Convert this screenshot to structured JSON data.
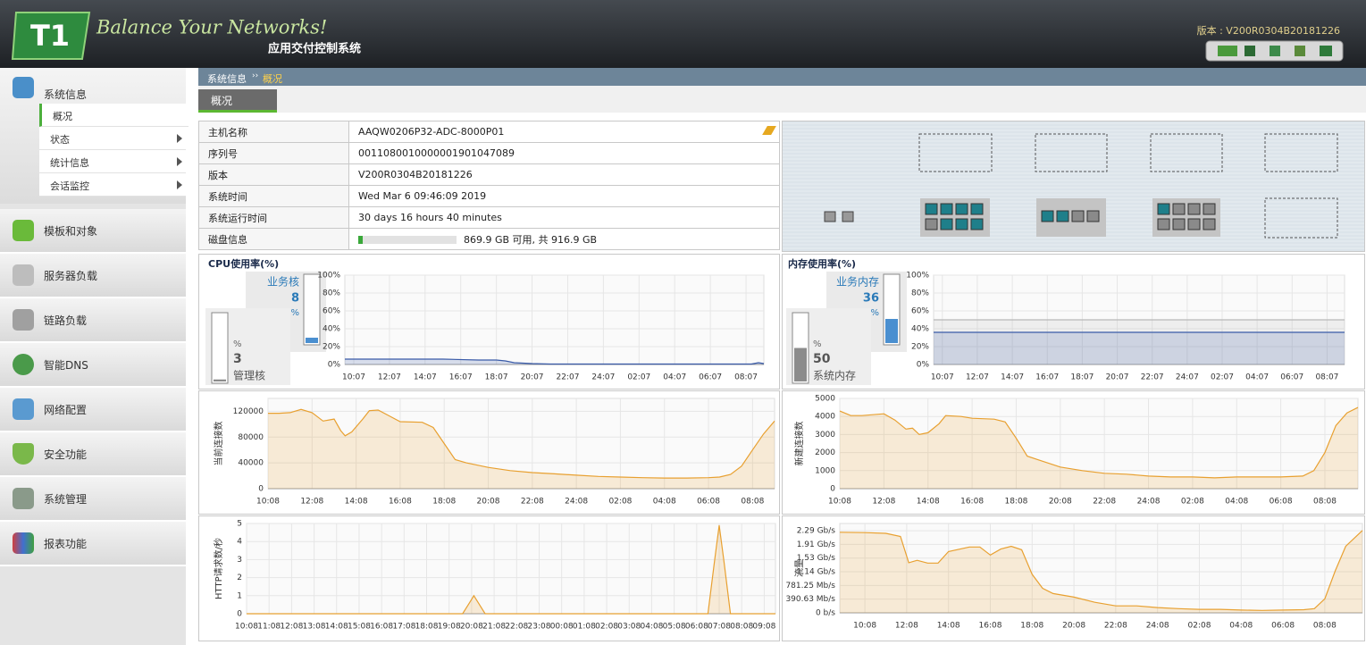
{
  "header": {
    "logo": "T1",
    "slogan": "Balance Your Networks!",
    "subtitle": "应用交付控制系统",
    "version": "版本 : V200R0304B20181226"
  },
  "sidebar": {
    "sections": [
      {
        "label": "系统信息",
        "items": [
          "概况",
          "状态",
          "统计信息",
          "会话监控"
        ]
      },
      {
        "label": "模板和对象"
      },
      {
        "label": "服务器负载"
      },
      {
        "label": "链路负载"
      },
      {
        "label": "智能DNS"
      },
      {
        "label": "网络配置"
      },
      {
        "label": "安全功能"
      },
      {
        "label": "系统管理"
      },
      {
        "label": "报表功能"
      }
    ]
  },
  "breadcrumb": {
    "parent": "系统信息",
    "separator": "››",
    "current": "概况"
  },
  "tab": "概况",
  "info_table": {
    "rows": [
      [
        "主机名称",
        "AAQW0206P32-ADC-8000P01"
      ],
      [
        "序列号",
        "0011080010000001901047089"
      ],
      [
        "版本",
        "V200R0304B20181226"
      ],
      [
        "系统时间",
        "Wed Mar 6 09:46:09 2019"
      ],
      [
        "系统运行时间",
        "30 days 16 hours 40 minutes"
      ],
      [
        "磁盘信息",
        "869.9 GB 可用, 共 916.9 GB"
      ]
    ]
  },
  "gauges": {
    "cpu": {
      "business": {
        "label": "业务核",
        "value": 8,
        "unit": "%"
      },
      "management": {
        "label": "管理核",
        "value": 3,
        "unit": "%"
      }
    },
    "memory": {
      "business": {
        "label": "业务内存",
        "value": 36,
        "unit": "%"
      },
      "management": {
        "label": "系统内存",
        "value": 50,
        "unit": "%"
      }
    }
  },
  "chart_data": [
    {
      "type": "area",
      "title": "CPU使用率(%)",
      "grid": true,
      "xlim": [
        -0.5,
        23
      ],
      "ylim": [
        0,
        100
      ],
      "yticks": [
        {
          "value": 0,
          "label": "0%"
        },
        {
          "value": 20,
          "label": "20%"
        },
        {
          "value": 40,
          "label": "40%"
        },
        {
          "value": 60,
          "label": "60%"
        },
        {
          "value": 80,
          "label": "80%"
        },
        {
          "value": 100,
          "label": "100%"
        }
      ],
      "xticks": [
        {
          "value": 0,
          "label": "10:07"
        },
        {
          "value": 2,
          "label": "12:07"
        },
        {
          "value": 4,
          "label": "14:07"
        },
        {
          "value": 6,
          "label": "16:07"
        },
        {
          "value": 8,
          "label": "18:07"
        },
        {
          "value": 10,
          "label": "20:07"
        },
        {
          "value": 12,
          "label": "22:07"
        },
        {
          "value": 14,
          "label": "24:07"
        },
        {
          "value": 16,
          "label": "02:07"
        },
        {
          "value": 18,
          "label": "04:07"
        },
        {
          "value": 20,
          "label": "06:07"
        },
        {
          "value": 22,
          "label": "08:07"
        }
      ],
      "series": [
        {
          "color": "#3a5ba8",
          "x": [
            -0.5,
            1,
            3,
            5,
            7,
            8,
            8.5,
            9,
            10,
            11,
            13,
            15,
            17,
            19,
            21,
            22.3,
            22.7,
            23
          ],
          "values": [
            6,
            6,
            6,
            6,
            5,
            5,
            4,
            2,
            1,
            0.5,
            0.5,
            0.5,
            0.5,
            0.5,
            0.5,
            0.5,
            2,
            1
          ]
        }
      ]
    },
    {
      "type": "area",
      "title": "内存使用率(%)",
      "grid": true,
      "xlim": [
        -0.5,
        23
      ],
      "ylim": [
        0,
        100
      ],
      "yticks": [
        {
          "value": 0,
          "label": "0%"
        },
        {
          "value": 20,
          "label": "20%"
        },
        {
          "value": 40,
          "label": "40%"
        },
        {
          "value": 60,
          "label": "60%"
        },
        {
          "value": 80,
          "label": "80%"
        },
        {
          "value": 100,
          "label": "100%"
        }
      ],
      "xticks": [
        {
          "value": 0,
          "label": "10:07"
        },
        {
          "value": 2,
          "label": "12:07"
        },
        {
          "value": 4,
          "label": "14:07"
        },
        {
          "value": 6,
          "label": "16:07"
        },
        {
          "value": 8,
          "label": "18:07"
        },
        {
          "value": 10,
          "label": "20:07"
        },
        {
          "value": 12,
          "label": "22:07"
        },
        {
          "value": 14,
          "label": "24:07"
        },
        {
          "value": 16,
          "label": "02:07"
        },
        {
          "value": 18,
          "label": "04:07"
        },
        {
          "value": 20,
          "label": "06:07"
        },
        {
          "value": 22,
          "label": "08:07"
        }
      ],
      "series": [
        {
          "color": "#b8b8b8",
          "x": [
            -0.5,
            23
          ],
          "values": [
            50,
            50
          ]
        },
        {
          "color": "#3a5ba8",
          "x": [
            -0.5,
            23
          ],
          "values": [
            36,
            36
          ]
        }
      ]
    },
    {
      "type": "area",
      "ylabel": "当前连接数",
      "grid": true,
      "xlim": [
        0,
        23
      ],
      "ylim": [
        0,
        140000
      ],
      "yticks": [
        0,
        40000,
        80000,
        120000
      ],
      "xticks": [
        {
          "value": 0,
          "label": "10:08"
        },
        {
          "value": 2,
          "label": "12:08"
        },
        {
          "value": 4,
          "label": "14:08"
        },
        {
          "value": 6,
          "label": "16:08"
        },
        {
          "value": 8,
          "label": "18:08"
        },
        {
          "value": 10,
          "label": "20:08"
        },
        {
          "value": 12,
          "label": "22:08"
        },
        {
          "value": 14,
          "label": "24:08"
        },
        {
          "value": 16,
          "label": "02:08"
        },
        {
          "value": 18,
          "label": "04:08"
        },
        {
          "value": 20,
          "label": "06:08"
        },
        {
          "value": 22,
          "label": "08:08"
        }
      ],
      "series": [
        {
          "color": "#e8a030",
          "x": [
            0,
            0.5,
            1,
            1.5,
            2,
            2.5,
            3,
            3.3,
            3.5,
            3.8,
            4.3,
            4.6,
            5,
            5.5,
            6,
            7,
            7.5,
            8,
            8.5,
            9,
            10,
            11,
            12,
            13,
            14,
            15,
            16,
            17,
            18,
            19,
            20,
            20.5,
            21,
            21.5,
            22,
            22.5,
            23
          ],
          "values": [
            117000,
            117000,
            118000,
            123000,
            118000,
            105000,
            108000,
            90000,
            82000,
            88000,
            108000,
            121000,
            122000,
            113000,
            104000,
            103000,
            95000,
            70000,
            45000,
            40000,
            33000,
            28000,
            25000,
            23000,
            21000,
            19000,
            18000,
            17000,
            16500,
            16500,
            17000,
            18000,
            22000,
            35000,
            60000,
            85000,
            105000
          ]
        }
      ]
    },
    {
      "type": "area",
      "ylabel": "新建连接数",
      "grid": true,
      "xlim": [
        0,
        23.5
      ],
      "ylim": [
        0,
        5000
      ],
      "yticks": [
        0,
        1000,
        2000,
        3000,
        4000,
        5000
      ],
      "xticks": [
        {
          "value": 0,
          "label": "10:08"
        },
        {
          "value": 2,
          "label": "12:08"
        },
        {
          "value": 4,
          "label": "14:08"
        },
        {
          "value": 6,
          "label": "16:08"
        },
        {
          "value": 8,
          "label": "18:08"
        },
        {
          "value": 10,
          "label": "20:08"
        },
        {
          "value": 12,
          "label": "22:08"
        },
        {
          "value": 14,
          "label": "24:08"
        },
        {
          "value": 16,
          "label": "02:08"
        },
        {
          "value": 18,
          "label": "04:08"
        },
        {
          "value": 20,
          "label": "06:08"
        },
        {
          "value": 22,
          "label": "08:08"
        }
      ],
      "series": [
        {
          "color": "#e8a030",
          "x": [
            0,
            0.5,
            1,
            2,
            2.5,
            3,
            3.3,
            3.6,
            4,
            4.5,
            4.8,
            5.5,
            6,
            7,
            7.5,
            8,
            8.5,
            9,
            10,
            11,
            12,
            13,
            14,
            15,
            16,
            17,
            18,
            19,
            20,
            21,
            21.5,
            22,
            22.5,
            23,
            23.5
          ],
          "values": [
            4300,
            4050,
            4050,
            4150,
            3800,
            3300,
            3350,
            3000,
            3100,
            3600,
            4050,
            4000,
            3900,
            3850,
            3700,
            2800,
            1800,
            1600,
            1200,
            1000,
            850,
            800,
            700,
            650,
            650,
            600,
            650,
            650,
            650,
            700,
            1000,
            2000,
            3500,
            4200,
            4500
          ]
        }
      ]
    },
    {
      "type": "area",
      "ylabel": "HTTP请求数/秒",
      "grid": true,
      "xlim": [
        0,
        23.5
      ],
      "ylim": [
        0,
        5
      ],
      "yticks": [
        0,
        1,
        2,
        3,
        4,
        5
      ],
      "xticks": [
        {
          "value": 0,
          "label": "10:08"
        },
        {
          "value": 1,
          "label": "11:08"
        },
        {
          "value": 2,
          "label": "12:08"
        },
        {
          "value": 3,
          "label": "13:08"
        },
        {
          "value": 4,
          "label": "14:08"
        },
        {
          "value": 5,
          "label": "15:08"
        },
        {
          "value": 6,
          "label": "16:08"
        },
        {
          "value": 7,
          "label": "17:08"
        },
        {
          "value": 8,
          "label": "18:08"
        },
        {
          "value": 9,
          "label": "19:08"
        },
        {
          "value": 10,
          "label": "20:08"
        },
        {
          "value": 11,
          "label": "21:08"
        },
        {
          "value": 12,
          "label": "22:08"
        },
        {
          "value": 13,
          "label": "23:08"
        },
        {
          "value": 14,
          "label": "00:08"
        },
        {
          "value": 15,
          "label": "01:08"
        },
        {
          "value": 16,
          "label": "02:08"
        },
        {
          "value": 17,
          "label": "03:08"
        },
        {
          "value": 18,
          "label": "04:08"
        },
        {
          "value": 19,
          "label": "05:08"
        },
        {
          "value": 20,
          "label": "06:08"
        },
        {
          "value": 21,
          "label": "07:08"
        },
        {
          "value": 22,
          "label": "08:08"
        },
        {
          "value": 23,
          "label": "09:08"
        }
      ],
      "series": [
        {
          "color": "#e8a030",
          "x": [
            0,
            9.6,
            9.9,
            10.1,
            10.3,
            10.6,
            20.5,
            20.8,
            21,
            21.2,
            21.5,
            23.5
          ],
          "values": [
            0,
            0,
            0.6,
            1,
            0.6,
            0,
            0,
            3,
            4.9,
            3,
            0,
            0
          ]
        }
      ]
    },
    {
      "type": "area",
      "ylabel": "流量",
      "grid": true,
      "xlim": [
        -1.2,
        23.8
      ],
      "ylim": [
        0,
        2550
      ],
      "yticks": [
        {
          "value": 0,
          "label": "0 b/s"
        },
        {
          "value": 390.63,
          "label": "390.63 Mb/s"
        },
        {
          "value": 781.25,
          "label": "781.25 Mb/s"
        },
        {
          "value": 1171.88,
          "label": "1.14 Gb/s"
        },
        {
          "value": 1562.5,
          "label": "1.53 Gb/s"
        },
        {
          "value": 1953.13,
          "label": "1.91 Gb/s"
        },
        {
          "value": 2343.75,
          "label": "2.29 Gb/s"
        }
      ],
      "xticks": [
        {
          "value": 0,
          "label": "10:08"
        },
        {
          "value": 2,
          "label": "12:08"
        },
        {
          "value": 4,
          "label": "14:08"
        },
        {
          "value": 6,
          "label": "16:08"
        },
        {
          "value": 8,
          "label": "18:08"
        },
        {
          "value": 10,
          "label": "20:08"
        },
        {
          "value": 12,
          "label": "22:08"
        },
        {
          "value": 14,
          "label": "24:08"
        },
        {
          "value": 16,
          "label": "02:08"
        },
        {
          "value": 18,
          "label": "04:08"
        },
        {
          "value": 20,
          "label": "06:08"
        },
        {
          "value": 22,
          "label": "08:08"
        }
      ],
      "series": [
        {
          "color": "#e8a030",
          "x": [
            -1.2,
            0,
            1,
            1.7,
            2.1,
            2.5,
            3,
            3.5,
            4,
            5,
            5.5,
            6,
            6.5,
            7,
            7.5,
            8,
            8.5,
            9,
            10,
            11,
            12,
            13,
            14,
            15,
            16,
            17,
            18,
            19,
            20,
            21,
            21.5,
            22,
            22.5,
            23,
            23.8
          ],
          "values": [
            2300,
            2290,
            2270,
            2180,
            1430,
            1500,
            1420,
            1420,
            1750,
            1880,
            1880,
            1650,
            1820,
            1900,
            1800,
            1100,
            700,
            550,
            450,
            300,
            200,
            200,
            150,
            120,
            100,
            100,
            80,
            70,
            80,
            90,
            120,
            400,
            1200,
            1900,
            2350
          ]
        }
      ]
    }
  ]
}
